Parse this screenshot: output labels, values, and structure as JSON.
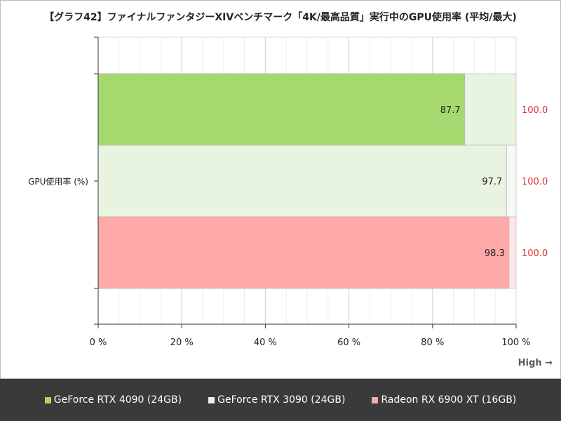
{
  "chart_data": {
    "type": "bar",
    "orientation": "horizontal",
    "title": "【グラフ42】ファイナルファンタジーXIVベンチマーク「4K/最高品質」実行中のGPU使用率 (平均/最大)",
    "category": "GPU使用率 (%)",
    "xlim": [
      0,
      100
    ],
    "xticks": [
      0,
      20,
      40,
      60,
      80,
      100
    ],
    "tick_suffix": " %",
    "direction_note": "High →",
    "grid": true,
    "legend_position": "bottom",
    "series": [
      {
        "name": "GeForce RTX 4090 (24GB)",
        "avg": 87.7,
        "max": 100.0,
        "avg_label": "87.7",
        "max_label": "100.0",
        "color": "#a5d96f",
        "light_color": "#e8f4df"
      },
      {
        "name": "GeForce RTX 3090 (24GB)",
        "avg": 97.7,
        "max": 100.0,
        "avg_label": "97.7",
        "max_label": "100.0",
        "color": "#e8f4df",
        "light_color": "#f6faf2"
      },
      {
        "name": "Radeon RX 6900 XT (16GB)",
        "avg": 98.3,
        "max": 100.0,
        "avg_label": "98.3",
        "max_label": "100.0",
        "color": "#ffa8a8",
        "light_color": "#ffe6e6"
      }
    ],
    "max_label_color": "#e03030"
  }
}
